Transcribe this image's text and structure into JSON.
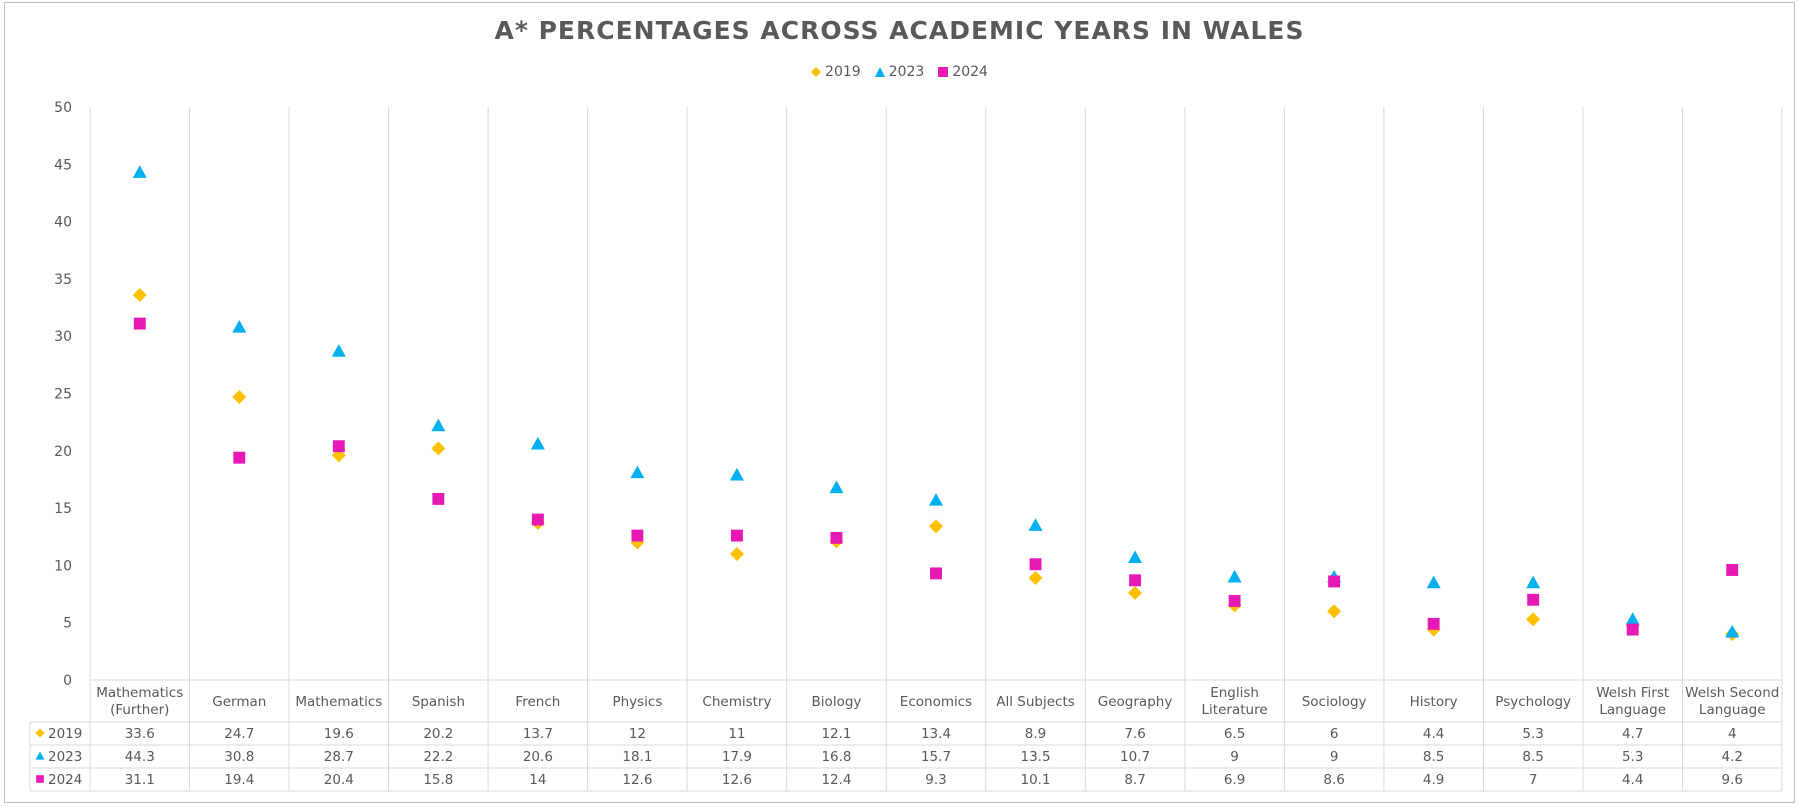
{
  "chart_data": {
    "type": "scatter",
    "title": "A* PERCENTAGES ACROSS ACADEMIC YEARS IN WALES",
    "legend_position": "top",
    "grid": "vertical category separators",
    "ylim": [
      0,
      50
    ],
    "y_ticks": [
      0,
      5,
      10,
      15,
      20,
      25,
      30,
      35,
      40,
      45,
      50
    ],
    "categories": [
      "Mathematics (Further)",
      "German",
      "Mathematics",
      "Spanish",
      "French",
      "Physics",
      "Chemistry",
      "Biology",
      "Economics",
      "All Subjects",
      "Geography",
      "English Literature",
      "Sociology",
      "History",
      "Psychology",
      "Welsh First Language",
      "Welsh Second Language"
    ],
    "category_lines": [
      [
        "Mathematics",
        "(Further)"
      ],
      [
        "German"
      ],
      [
        "Mathematics"
      ],
      [
        "Spanish"
      ],
      [
        "French"
      ],
      [
        "Physics"
      ],
      [
        "Chemistry"
      ],
      [
        "Biology"
      ],
      [
        "Economics"
      ],
      [
        "All Subjects"
      ],
      [
        "Geography"
      ],
      [
        "English",
        "Literature"
      ],
      [
        "Sociology"
      ],
      [
        "History"
      ],
      [
        "Psychology"
      ],
      [
        "Welsh First",
        "Language"
      ],
      [
        "Welsh Second",
        "Language"
      ]
    ],
    "series": [
      {
        "name": "2019",
        "marker": "diamond",
        "color": "#FFC000",
        "values": [
          33.6,
          24.7,
          19.6,
          20.2,
          13.7,
          12,
          11,
          12.1,
          13.4,
          8.9,
          7.6,
          6.5,
          6,
          4.4,
          5.3,
          4.7,
          4
        ]
      },
      {
        "name": "2023",
        "marker": "triangle",
        "color": "#00B0F0",
        "values": [
          44.3,
          30.8,
          28.7,
          22.2,
          20.6,
          18.1,
          17.9,
          16.8,
          15.7,
          13.5,
          10.7,
          9,
          9,
          8.5,
          8.5,
          5.3,
          4.2
        ]
      },
      {
        "name": "2024",
        "marker": "square",
        "color": "#E619B4",
        "values": [
          31.1,
          19.4,
          20.4,
          15.8,
          14,
          12.6,
          12.6,
          12.4,
          9.3,
          10.1,
          8.7,
          6.9,
          8.6,
          4.9,
          7,
          4.4,
          9.6
        ]
      }
    ]
  }
}
